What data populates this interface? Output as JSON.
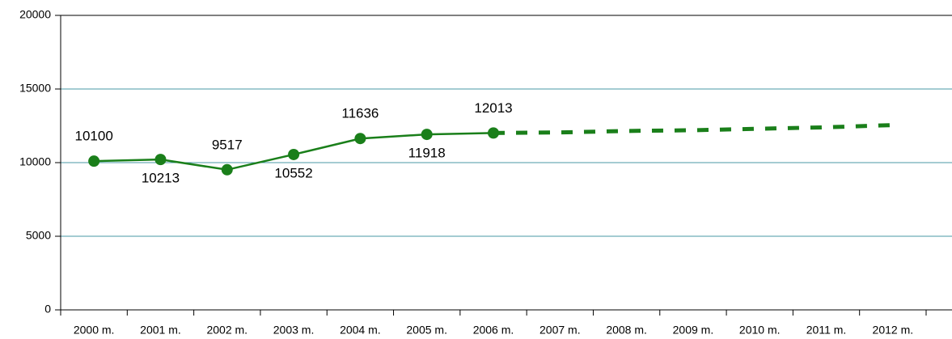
{
  "chart_data": {
    "type": "line",
    "categories": [
      "2000 m.",
      "2001 m.",
      "2002 m.",
      "2003 m.",
      "2004 m.",
      "2005 m.",
      "2006 m.",
      "2007 m.",
      "2008 m.",
      "2009 m.",
      "2010 m.",
      "2011 m.",
      "2012 m."
    ],
    "series": [
      {
        "color": "#1a7f1a",
        "line_style": "solid",
        "markers": true,
        "data_labels": true,
        "values": [
          10100,
          10213,
          9517,
          10552,
          11636,
          11918,
          12013,
          null,
          null,
          null,
          null,
          null,
          null
        ]
      },
      {
        "color": "#1a7f1a",
        "line_style": "dashed",
        "markers": false,
        "data_labels": false,
        "values": [
          null,
          null,
          null,
          null,
          null,
          null,
          12013,
          12050,
          12150,
          12200,
          12300,
          12400,
          12550
        ]
      }
    ],
    "ylim": [
      0,
      20000
    ],
    "yticks": [
      0,
      5000,
      10000,
      15000,
      20000
    ],
    "grid": true,
    "grid_color": "#4a9aa6"
  }
}
